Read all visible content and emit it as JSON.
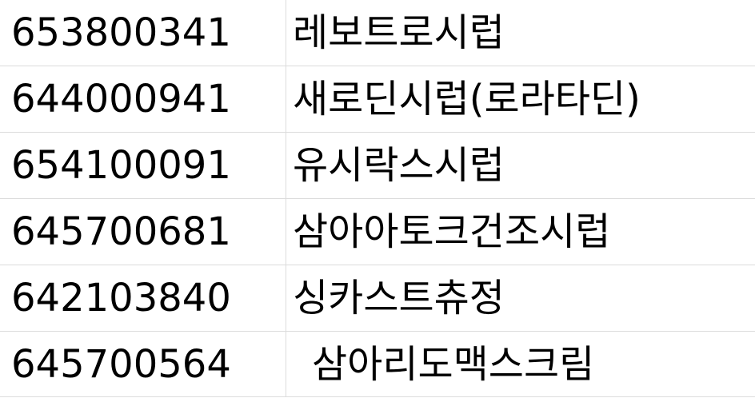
{
  "rows": [
    {
      "code": "653800341",
      "name": "레보트로시럽"
    },
    {
      "code": "644000941",
      "name": "새로딘시럽(로라타딘)"
    },
    {
      "code": "654100091",
      "name": "유시락스시럽"
    },
    {
      "code": "645700681",
      "name": "삼아아토크건조시럽"
    },
    {
      "code": "642103840",
      "name": "싱카스트츄정"
    },
    {
      "code": "645700564",
      "name": "삼아리도맥스크림"
    }
  ]
}
